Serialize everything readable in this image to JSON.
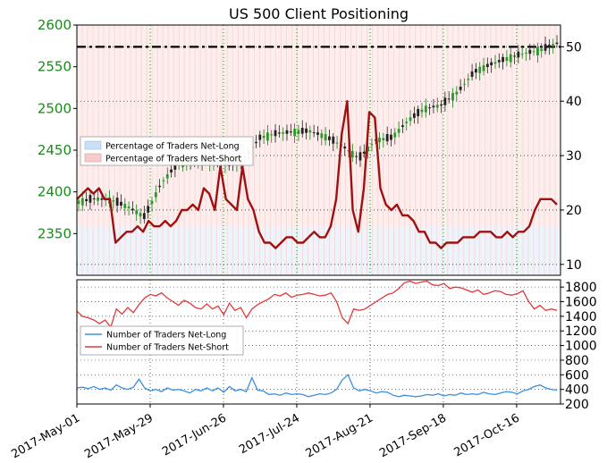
{
  "chart_data": {
    "type": "line",
    "title": "US 500 Client Positioning",
    "x_dates": [
      "2017-05-01",
      "2017-05-08",
      "2017-05-15",
      "2017-05-22",
      "2017-05-29",
      "2017-06-05",
      "2017-06-12",
      "2017-06-19",
      "2017-06-26",
      "2017-07-03",
      "2017-07-10",
      "2017-07-17",
      "2017-07-24",
      "2017-07-31",
      "2017-08-07",
      "2017-08-14",
      "2017-08-21",
      "2017-08-28",
      "2017-09-04",
      "2017-09-11",
      "2017-09-18",
      "2017-09-25",
      "2017-10-02",
      "2017-10-09",
      "2017-10-16",
      "2017-10-23",
      "2017-10-30"
    ],
    "x_tick_labels": [
      "2017-May-01",
      "2017-May-29",
      "2017-Jun-26",
      "2017-Jul-24",
      "2017-Aug-21",
      "2017-Sep-18",
      "2017-Oct-16"
    ],
    "x_tick_dates": [
      "2017-05-01",
      "2017-05-29",
      "2017-06-26",
      "2017-07-24",
      "2017-08-21",
      "2017-09-18",
      "2017-10-16"
    ],
    "top_panel": {
      "left_axis": {
        "ylim": [
          2300,
          2600
        ],
        "ticks": [
          2350,
          2400,
          2450,
          2500,
          2550,
          2600
        ]
      },
      "right_axis": {
        "ylim": [
          8,
          54
        ],
        "ticks": [
          10,
          20,
          30,
          40,
          50
        ]
      },
      "reference_line": 50,
      "price_close": [
        2388,
        2392,
        2390,
        2382,
        2370,
        2410,
        2434,
        2436,
        2438,
        2432,
        2440,
        2465,
        2470,
        2472,
        2473,
        2466,
        2455,
        2440,
        2462,
        2465,
        2486,
        2500,
        2504,
        2520,
        2544,
        2553,
        2560,
        2566,
        2570,
        2578
      ],
      "legend": [
        {
          "label": "Percentage of Traders Net-Long",
          "color": "#cce0f5"
        },
        {
          "label": "Percentage of Traders Net-Short",
          "color": "#f5cccc"
        }
      ],
      "net_short_pct": [
        22,
        23,
        24,
        23,
        24,
        22,
        22,
        14,
        15,
        16,
        16,
        17,
        16,
        18,
        17,
        17,
        18,
        17,
        18,
        20,
        20,
        21,
        20,
        24,
        23,
        20,
        28,
        22,
        21,
        20,
        28,
        22,
        20,
        16,
        14,
        14,
        13,
        14,
        15,
        15,
        14,
        14,
        15,
        16,
        15,
        15,
        17,
        22,
        34,
        40,
        20,
        16,
        24,
        38,
        37,
        24,
        21,
        20,
        21,
        19,
        19,
        18,
        16,
        16,
        14,
        14,
        13,
        14,
        14,
        14,
        15,
        15,
        15,
        16,
        16,
        16,
        15,
        15,
        16,
        15,
        16,
        16,
        17,
        20,
        22,
        22,
        22,
        21
      ]
    },
    "bottom_panel": {
      "ylim": [
        200,
        1900
      ],
      "ticks": [
        200,
        400,
        600,
        800,
        1000,
        1200,
        1400,
        1600,
        1800
      ],
      "legend": [
        {
          "label": "Number of Traders Net-Long",
          "color": "#3a8fe0"
        },
        {
          "label": "Number of Traders Net-Short",
          "color": "#e03a3a"
        }
      ],
      "net_long": [
        420,
        430,
        410,
        440,
        400,
        420,
        390,
        460,
        420,
        400,
        430,
        540,
        420,
        380,
        400,
        370,
        420,
        390,
        400,
        380,
        350,
        400,
        380,
        420,
        380,
        420,
        360,
        440,
        380,
        400,
        370,
        560,
        390,
        380,
        330,
        340,
        320,
        350,
        330,
        340,
        330,
        300,
        320,
        340,
        330,
        350,
        400,
        530,
        600,
        420,
        380,
        400,
        380,
        350,
        370,
        360,
        320,
        300,
        320,
        310,
        300,
        310,
        330,
        320,
        340,
        310,
        330,
        320,
        350,
        330,
        340,
        330,
        360,
        340,
        330,
        350,
        370,
        360,
        340,
        380,
        400,
        440,
        460,
        420,
        400,
        390
      ],
      "net_short": [
        1470,
        1400,
        1380,
        1350,
        1300,
        1350,
        1250,
        1500,
        1430,
        1520,
        1450,
        1560,
        1650,
        1700,
        1680,
        1720,
        1650,
        1600,
        1550,
        1620,
        1580,
        1520,
        1500,
        1570,
        1500,
        1540,
        1420,
        1580,
        1480,
        1520,
        1380,
        1500,
        1560,
        1600,
        1640,
        1700,
        1680,
        1720,
        1660,
        1690,
        1700,
        1720,
        1700,
        1680,
        1690,
        1720,
        1600,
        1380,
        1300,
        1500,
        1480,
        1500,
        1550,
        1600,
        1650,
        1700,
        1720,
        1780,
        1860,
        1880,
        1850,
        1870,
        1880,
        1830,
        1820,
        1850,
        1780,
        1800,
        1790,
        1760,
        1730,
        1760,
        1700,
        1720,
        1750,
        1740,
        1700,
        1690,
        1710,
        1750,
        1600,
        1500,
        1550,
        1480,
        1500,
        1480
      ]
    }
  }
}
